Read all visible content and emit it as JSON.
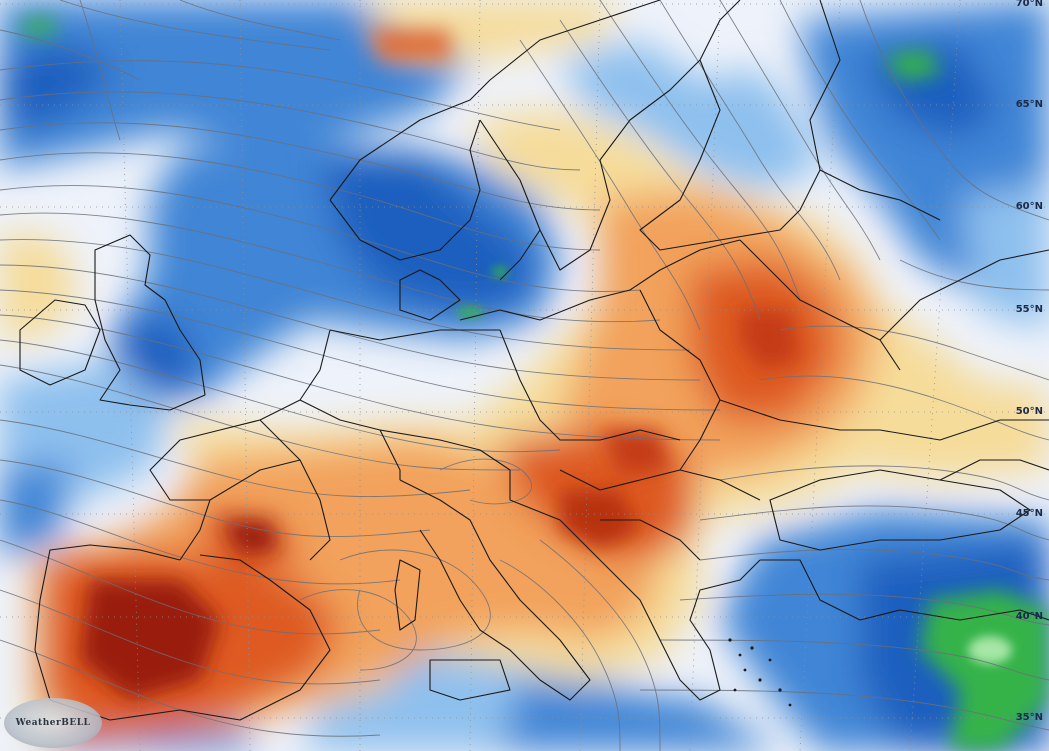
{
  "map": {
    "title": "",
    "lat_labels": [
      "70°N",
      "65°N",
      "60°N",
      "55°N",
      "50°N",
      "45°N",
      "40°N",
      "35°N"
    ],
    "branding": "WeatherBELL",
    "legend": [],
    "colors": {
      "deep_blue": "#1e5fbf",
      "blue": "#3f85d6",
      "light_blue": "#8ec0ee",
      "pale": "#eef2fa",
      "yellow": "#f6dc9a",
      "orange": "#f2a25b",
      "red_orange": "#de5a24",
      "dark_red": "#9a1a0a",
      "green": "#34b34a",
      "borders": "#1a1a1a",
      "streamlines": "#6a6f7a"
    }
  }
}
